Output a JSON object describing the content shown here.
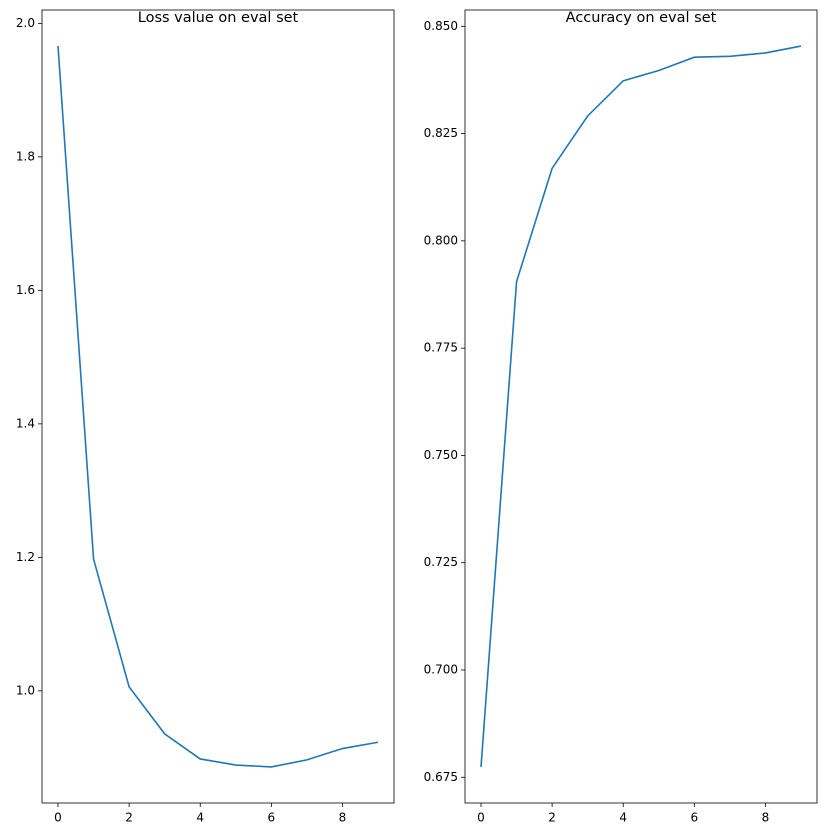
{
  "chart_data": [
    {
      "type": "line",
      "title": "Loss value on eval set",
      "x": [
        0,
        1,
        2,
        3,
        4,
        5,
        6,
        7,
        8,
        9
      ],
      "values": [
        1.966,
        1.1975,
        1.006,
        0.9355,
        0.898,
        0.8889,
        0.886,
        0.8966,
        0.9136,
        0.923
      ],
      "color": "#1f77b4",
      "xlim": [
        -0.45,
        9.45
      ],
      "xticks": [
        0,
        2,
        4,
        6,
        8
      ],
      "ylim": [
        0.832,
        2.02
      ],
      "yticks": [
        {
          "value": 1.0,
          "label": "1.0"
        },
        1.2,
        1.4,
        1.6,
        1.8,
        {
          "value": 2.0,
          "label": "2.0"
        }
      ]
    },
    {
      "type": "line",
      "title": "Accuracy on eval set",
      "x": [
        0,
        1,
        2,
        3,
        4,
        5,
        6,
        7,
        8,
        9
      ],
      "values": [
        0.6774,
        0.7905,
        0.8169,
        0.8291,
        0.8373,
        0.8397,
        0.8428,
        0.843,
        0.8438,
        0.8454
      ],
      "color": "#1f77b4",
      "xlim": [
        -0.45,
        9.45
      ],
      "xticks": [
        0,
        2,
        4,
        6,
        8
      ],
      "ylim": [
        0.669,
        0.8538
      ],
      "yticks": [
        0.675,
        {
          "value": 0.7,
          "label": "0.700"
        },
        0.725,
        {
          "value": 0.75,
          "label": "0.750"
        },
        0.775,
        {
          "value": 0.8,
          "label": "0.800"
        },
        0.825,
        {
          "value": 0.85,
          "label": "0.850"
        }
      ]
    }
  ]
}
